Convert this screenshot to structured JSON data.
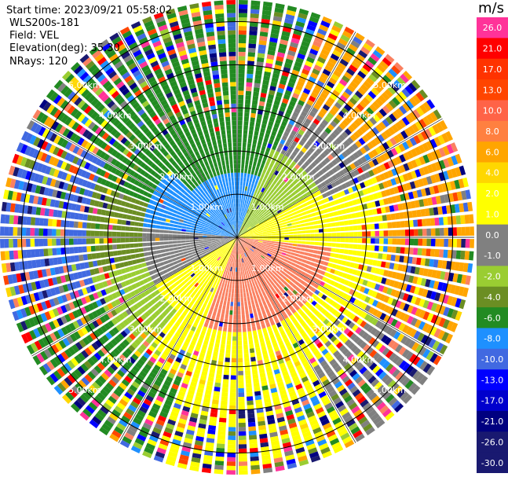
{
  "header": {
    "start_time": "Start time: 2023/09/21 05:58:02",
    "instrument": "WLS200s-181",
    "field": "Field: VEL",
    "elevation": "Elevation(deg): 35.30",
    "nrays": "NRays: 120"
  },
  "colorbar": {
    "units": "m/s",
    "ticks": [
      "26.0",
      "21.0",
      "17.0",
      "13.0",
      "10.0",
      "8.0",
      "6.0",
      "4.0",
      "2.0",
      "1.0",
      "0.0",
      "-1.0",
      "-2.0",
      "-4.0",
      "-6.0",
      "-8.0",
      "-10.0",
      "-13.0",
      "-17.0",
      "-21.0",
      "-26.0",
      "-30.0"
    ],
    "colors": [
      "#ff3399",
      "#ff0000",
      "#ff3300",
      "#ff4500",
      "#ff6347",
      "#ff8040",
      "#ffa500",
      "#ffd700",
      "#ffff00",
      "#ffff00",
      "#808080",
      "#808080",
      "#9acd32",
      "#6b8e23",
      "#228b22",
      "#1e90ff",
      "#4169e1",
      "#0000ff",
      "#0000cd",
      "#000080",
      "#191970",
      "#191970"
    ]
  },
  "chart_data": {
    "type": "ppi",
    "field": "VEL",
    "nrays": 120,
    "max_range_km": 5.5,
    "range_ring_labels": [
      "1.00km",
      "2.00km",
      "3.00km",
      "4.00km",
      "5.00km"
    ],
    "range_rings_km": [
      1,
      2,
      3,
      4,
      5
    ]
  }
}
